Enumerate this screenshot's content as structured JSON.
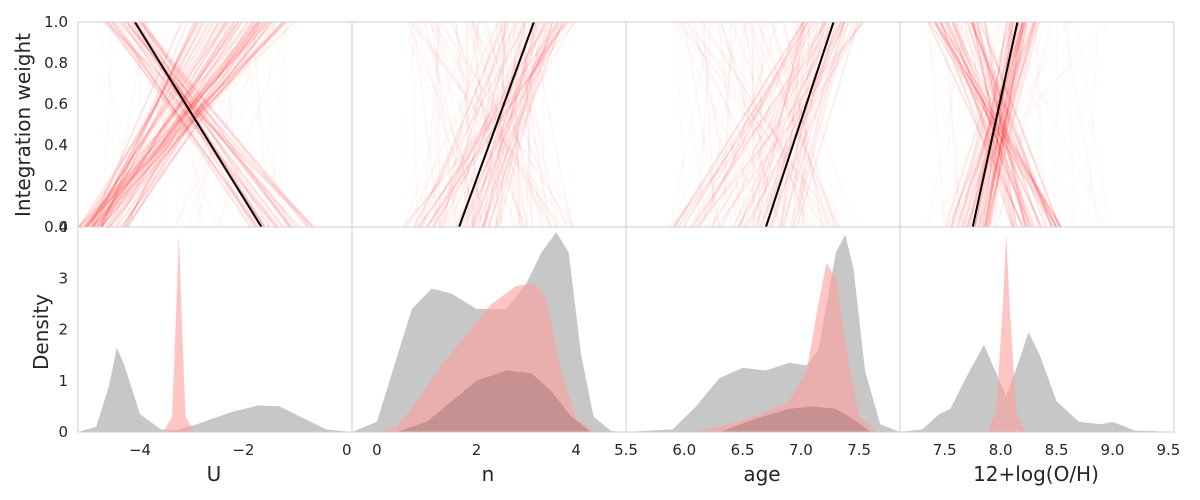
{
  "chart_data": {
    "type": "panel-grid",
    "top_row": {
      "ylabel": "Integration weight",
      "ylim": [
        0,
        1
      ],
      "yticks": [
        "0.0",
        "0.2",
        "0.4",
        "0.6",
        "0.8",
        "1.0"
      ],
      "description_type": "line",
      "line_color": "#000000",
      "sample_color": "#ff0000"
    },
    "bottom_row": {
      "ylabel": "Density",
      "ylim": [
        0,
        4
      ],
      "yticks": [
        "0",
        "1",
        "2",
        "3",
        "4"
      ],
      "grey_color": "#b4b4b4",
      "pink_color": "#ff9e9e"
    },
    "panels": [
      {
        "xlabel": "U",
        "xlim": [
          -5.2,
          0.1
        ],
        "xticks": [
          {
            "v": -4,
            "t": "−4"
          },
          {
            "v": -2,
            "t": "−2"
          },
          {
            "v": 0,
            "t": "0"
          }
        ],
        "line": [
          [
            -4.1,
            1.0
          ],
          [
            -1.65,
            0.0
          ]
        ],
        "bundles": [
          {
            "x0": [
              -5.2,
              -4.7
            ],
            "x1": [
              -3.2,
              -1.0
            ],
            "n": 45,
            "a": 0.09
          },
          {
            "x0": [
              -1.9,
              -0.6
            ],
            "x1": [
              -4.7,
              -3.9
            ],
            "n": 40,
            "a": 0.08
          },
          {
            "x0": [
              -4.9,
              -4.2
            ],
            "x1": [
              -2.5,
              -1.3
            ],
            "n": 30,
            "a": 0.06
          },
          {
            "x0": [
              -4.9,
              -1.0
            ],
            "x1": [
              -4.9,
              -1.0
            ],
            "n": 30,
            "a": 0.025
          }
        ],
        "grey_density": [
          [
            -5.2,
            0.0
          ],
          [
            -4.85,
            0.1
          ],
          [
            -4.6,
            0.9
          ],
          [
            -4.45,
            1.65
          ],
          [
            -4.3,
            1.3
          ],
          [
            -4.0,
            0.35
          ],
          [
            -3.6,
            0.05
          ],
          [
            -3.3,
            0.03
          ],
          [
            -2.9,
            0.15
          ],
          [
            -2.2,
            0.4
          ],
          [
            -1.7,
            0.52
          ],
          [
            -1.3,
            0.5
          ],
          [
            -0.8,
            0.25
          ],
          [
            -0.4,
            0.05
          ],
          [
            0.1,
            0.0
          ]
        ],
        "pink_density": [
          [
            -3.55,
            0.0
          ],
          [
            -3.38,
            0.3
          ],
          [
            -3.3,
            2.4
          ],
          [
            -3.25,
            3.85
          ],
          [
            -3.2,
            2.4
          ],
          [
            -3.12,
            0.3
          ],
          [
            -2.95,
            0.0
          ]
        ]
      },
      {
        "xlabel": "n",
        "xlim": [
          -0.5,
          5.0
        ],
        "xticks": [
          {
            "v": 0,
            "t": "0"
          },
          {
            "v": 2,
            "t": "2"
          },
          {
            "v": 4,
            "t": "4"
          }
        ],
        "line": [
          [
            1.65,
            0.0
          ],
          [
            3.15,
            1.0
          ]
        ],
        "bundles": [
          {
            "x0": [
              0.5,
              2.5
            ],
            "x1": [
              2.5,
              4.0
            ],
            "n": 45,
            "a": 0.07
          },
          {
            "x0": [
              1.0,
              4.0
            ],
            "x1": [
              0.5,
              3.0
            ],
            "n": 30,
            "a": 0.045
          },
          {
            "x0": [
              0.5,
              4.0
            ],
            "x1": [
              0.5,
              4.0
            ],
            "n": 40,
            "a": 0.035
          }
        ],
        "grey_density": [
          [
            -0.5,
            0.0
          ],
          [
            0.0,
            0.2
          ],
          [
            0.35,
            1.3
          ],
          [
            0.7,
            2.4
          ],
          [
            1.1,
            2.8
          ],
          [
            1.5,
            2.7
          ],
          [
            2.0,
            2.4
          ],
          [
            2.6,
            2.4
          ],
          [
            3.0,
            2.9
          ],
          [
            3.3,
            3.5
          ],
          [
            3.6,
            3.9
          ],
          [
            3.85,
            3.5
          ],
          [
            4.1,
            1.5
          ],
          [
            4.35,
            0.3
          ],
          [
            4.7,
            0.02
          ],
          [
            5.0,
            0.0
          ]
        ],
        "pink_density": [
          [
            0.0,
            0.0
          ],
          [
            0.4,
            0.1
          ],
          [
            0.8,
            0.6
          ],
          [
            1.3,
            1.3
          ],
          [
            1.8,
            1.9
          ],
          [
            2.3,
            2.5
          ],
          [
            2.8,
            2.85
          ],
          [
            3.15,
            2.9
          ],
          [
            3.4,
            2.6
          ],
          [
            3.7,
            1.2
          ],
          [
            4.0,
            0.25
          ],
          [
            4.4,
            0.0
          ]
        ],
        "dark_density": [
          [
            0.4,
            0.0
          ],
          [
            1.0,
            0.2
          ],
          [
            1.5,
            0.6
          ],
          [
            2.0,
            1.0
          ],
          [
            2.6,
            1.2
          ],
          [
            3.1,
            1.15
          ],
          [
            3.5,
            0.8
          ],
          [
            3.9,
            0.3
          ],
          [
            4.3,
            0.0
          ]
        ]
      },
      {
        "xlabel": "age",
        "xlim": [
          5.5,
          7.85
        ],
        "xticks": [
          {
            "v": 5.5,
            "t": "5.5"
          },
          {
            "v": 6.0,
            "t": "6.0"
          },
          {
            "v": 6.5,
            "t": "6.5"
          },
          {
            "v": 7.0,
            "t": "7.0"
          },
          {
            "v": 7.5,
            "t": "7.5"
          }
        ],
        "line": [
          [
            6.7,
            0.0
          ],
          [
            7.28,
            1.0
          ]
        ],
        "bundles": [
          {
            "x0": [
              5.9,
              7.0
            ],
            "x1": [
              7.0,
              7.55
            ],
            "n": 50,
            "a": 0.07
          },
          {
            "x0": [
              6.2,
              7.4
            ],
            "x1": [
              5.9,
              6.9
            ],
            "n": 25,
            "a": 0.045
          },
          {
            "x0": [
              5.85,
              7.5
            ],
            "x1": [
              5.85,
              7.5
            ],
            "n": 35,
            "a": 0.03
          }
        ],
        "grey_density": [
          [
            5.5,
            0.0
          ],
          [
            5.9,
            0.05
          ],
          [
            6.1,
            0.5
          ],
          [
            6.3,
            1.05
          ],
          [
            6.5,
            1.25
          ],
          [
            6.7,
            1.2
          ],
          [
            6.9,
            1.35
          ],
          [
            7.05,
            1.3
          ],
          [
            7.15,
            1.6
          ],
          [
            7.3,
            3.5
          ],
          [
            7.38,
            3.85
          ],
          [
            7.45,
            3.2
          ],
          [
            7.55,
            1.2
          ],
          [
            7.68,
            0.15
          ],
          [
            7.85,
            0.0
          ]
        ],
        "pink_density": [
          [
            6.05,
            0.0
          ],
          [
            6.3,
            0.1
          ],
          [
            6.6,
            0.3
          ],
          [
            6.9,
            0.6
          ],
          [
            7.05,
            1.2
          ],
          [
            7.15,
            2.5
          ],
          [
            7.22,
            3.3
          ],
          [
            7.3,
            3.0
          ],
          [
            7.4,
            1.5
          ],
          [
            7.5,
            0.3
          ],
          [
            7.65,
            0.0
          ]
        ],
        "dark_density": [
          [
            6.3,
            0.0
          ],
          [
            6.6,
            0.25
          ],
          [
            6.9,
            0.45
          ],
          [
            7.1,
            0.5
          ],
          [
            7.3,
            0.45
          ],
          [
            7.45,
            0.25
          ],
          [
            7.6,
            0.0
          ]
        ]
      },
      {
        "xlabel": "12+log(O/H)",
        "xlim": [
          7.1,
          9.55
        ],
        "xticks": [
          {
            "v": 7.5,
            "t": "7.5"
          },
          {
            "v": 8.0,
            "t": "8.0"
          },
          {
            "v": 8.5,
            "t": "8.5"
          },
          {
            "v": 9.0,
            "t": "9.0"
          },
          {
            "v": 9.5,
            "t": "9.5"
          }
        ],
        "line": [
          [
            7.75,
            0.0
          ],
          [
            8.15,
            1.0
          ]
        ],
        "bundles": [
          {
            "x0": [
              7.5,
              7.95
            ],
            "x1": [
              8.05,
              8.35
            ],
            "n": 45,
            "a": 0.09
          },
          {
            "x0": [
              8.1,
              8.55
            ],
            "x1": [
              7.35,
              7.9
            ],
            "n": 45,
            "a": 0.09
          },
          {
            "x0": [
              7.3,
              9.0
            ],
            "x1": [
              7.3,
              9.0
            ],
            "n": 30,
            "a": 0.03
          }
        ],
        "grey_density": [
          [
            7.1,
            0.0
          ],
          [
            7.3,
            0.05
          ],
          [
            7.45,
            0.35
          ],
          [
            7.55,
            0.45
          ],
          [
            7.7,
            1.1
          ],
          [
            7.85,
            1.7
          ],
          [
            7.95,
            1.2
          ],
          [
            8.05,
            0.7
          ],
          [
            8.15,
            1.3
          ],
          [
            8.25,
            1.95
          ],
          [
            8.35,
            1.5
          ],
          [
            8.5,
            0.6
          ],
          [
            8.7,
            0.2
          ],
          [
            8.9,
            0.15
          ],
          [
            9.0,
            0.2
          ],
          [
            9.2,
            0.03
          ],
          [
            9.55,
            0.0
          ]
        ],
        "pink_density": [
          [
            7.88,
            0.0
          ],
          [
            7.96,
            0.4
          ],
          [
            8.02,
            2.5
          ],
          [
            8.05,
            3.85
          ],
          [
            8.08,
            2.5
          ],
          [
            8.14,
            0.4
          ],
          [
            8.22,
            0.0
          ]
        ]
      }
    ]
  }
}
